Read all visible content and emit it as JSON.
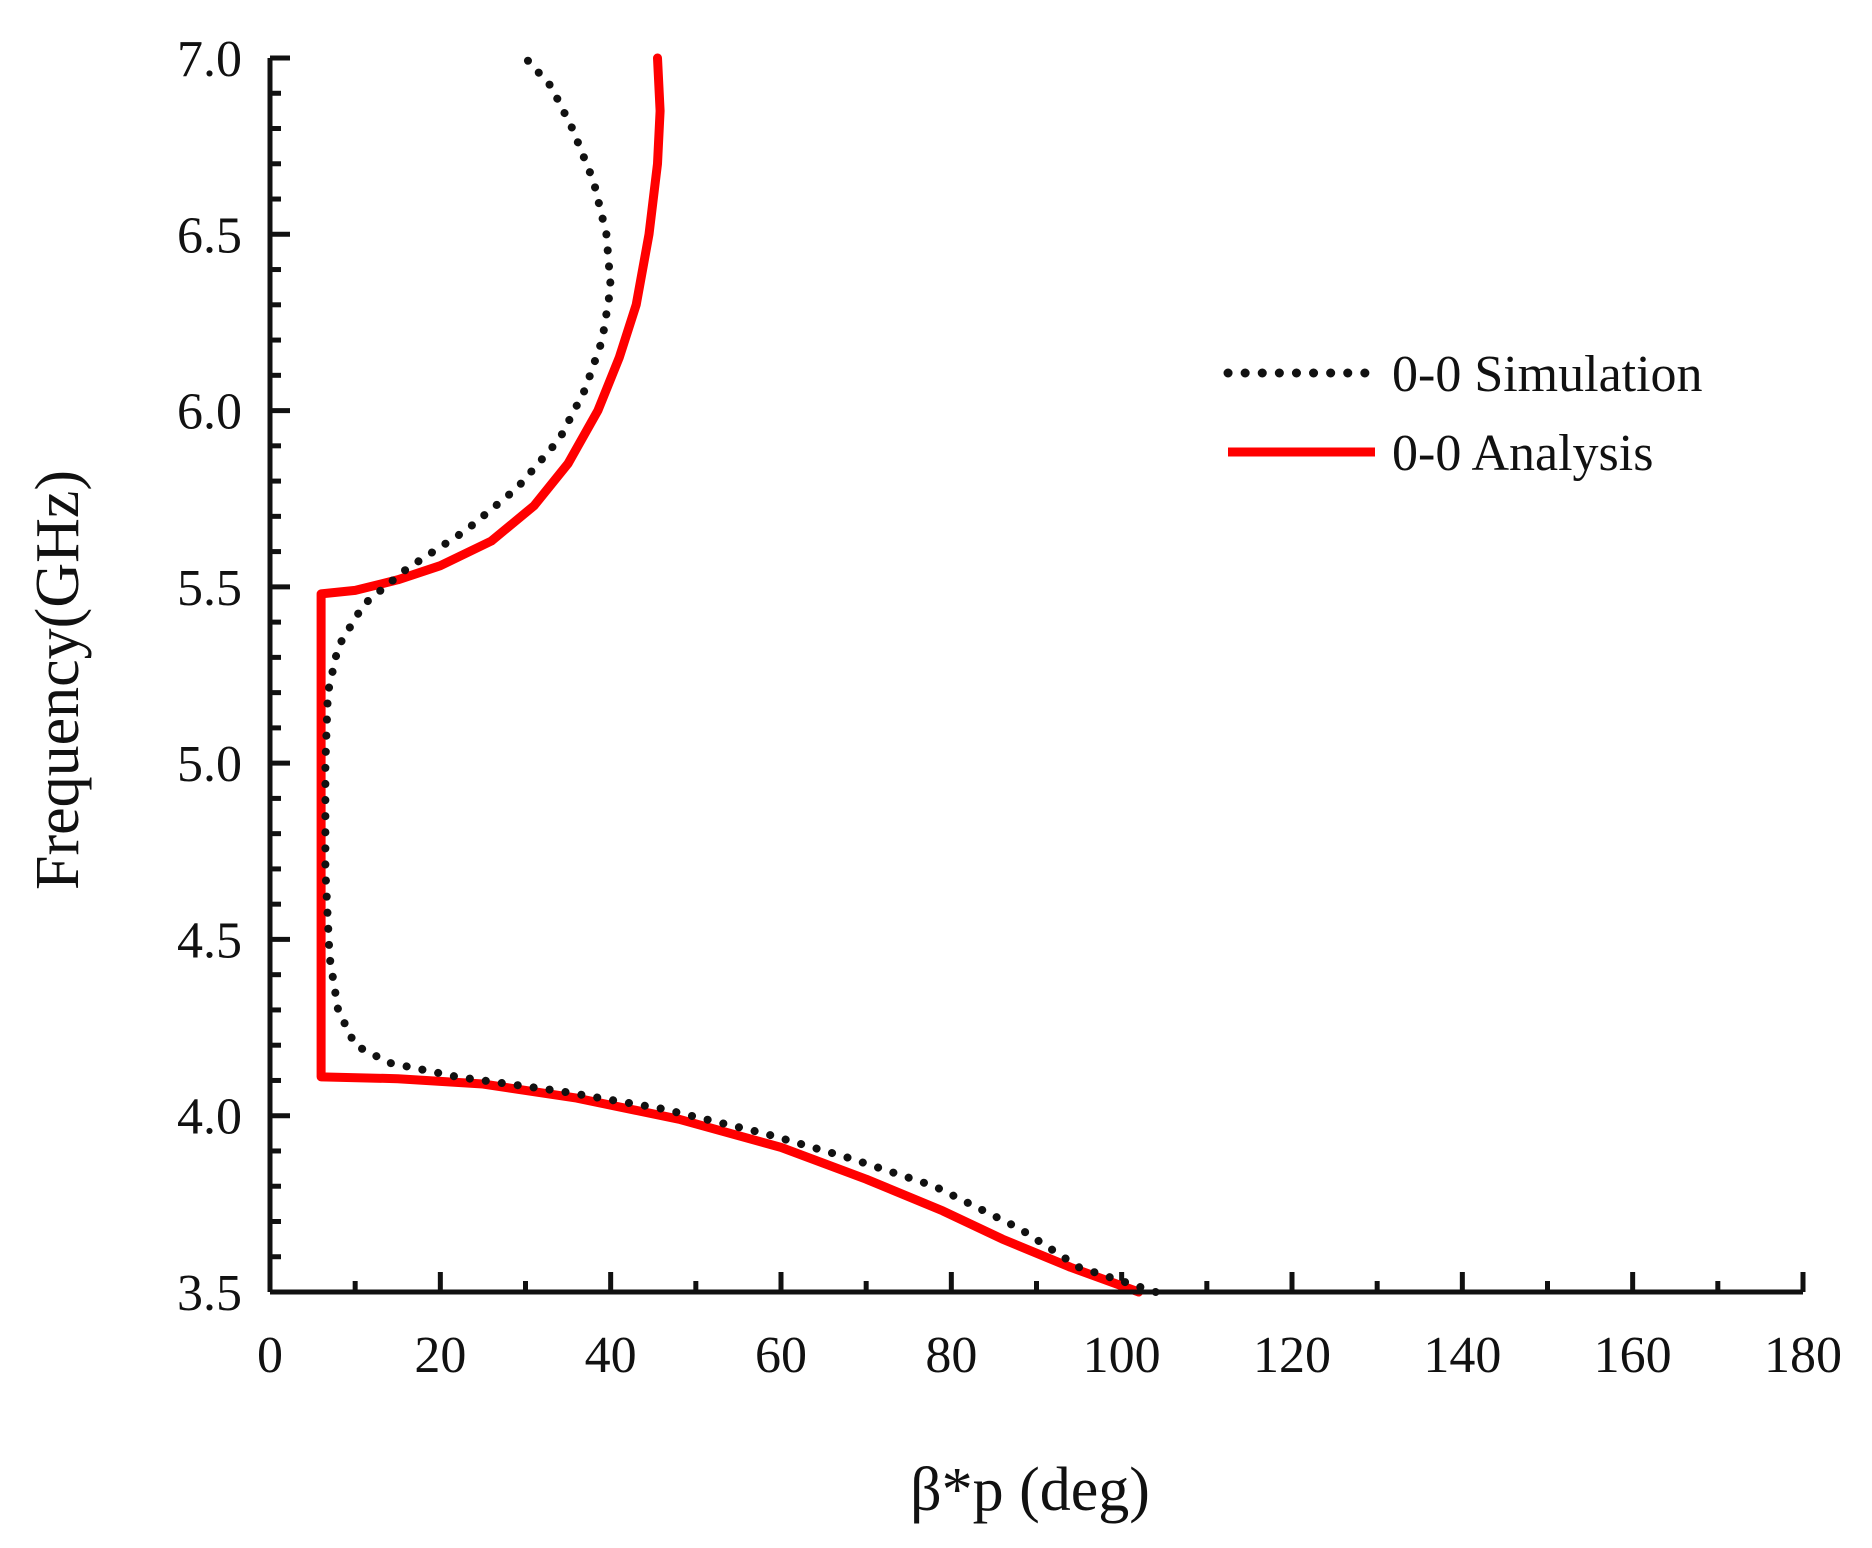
{
  "chart_data": {
    "type": "line",
    "title": "",
    "xlabel": "β*p (deg)",
    "ylabel": "Frequency(GHz)",
    "xlim": [
      0,
      180
    ],
    "ylim": [
      3.5,
      7.0
    ],
    "x_ticks": [
      0,
      20,
      40,
      60,
      80,
      100,
      120,
      140,
      160,
      180
    ],
    "x_tick_labels": [
      "0",
      "20",
      "40",
      "60",
      "80",
      "100",
      "120",
      "140",
      "160",
      "180"
    ],
    "y_ticks": [
      3.5,
      4.0,
      4.5,
      5.0,
      5.5,
      6.0,
      6.5,
      7.0
    ],
    "y_tick_labels": [
      "3.5",
      "4.0",
      "4.5",
      "5.0",
      "5.5",
      "6.0",
      "6.5",
      "7.0"
    ],
    "grid": false,
    "legend_position": "top-right",
    "series": [
      {
        "name": "0-0 Simulation",
        "style": "dotted",
        "color": "#111111",
        "points": [
          [
            104,
            3.5
          ],
          [
            95,
            3.57
          ],
          [
            88,
            3.68
          ],
          [
            78,
            3.8
          ],
          [
            68,
            3.88
          ],
          [
            58,
            3.95
          ],
          [
            46,
            4.02
          ],
          [
            34,
            4.07
          ],
          [
            22,
            4.11
          ],
          [
            14,
            4.15
          ],
          [
            10,
            4.2
          ],
          [
            8,
            4.3
          ],
          [
            7,
            4.45
          ],
          [
            6.5,
            4.7
          ],
          [
            6.5,
            5.0
          ],
          [
            6.8,
            5.2
          ],
          [
            8,
            5.33
          ],
          [
            11,
            5.45
          ],
          [
            16,
            5.55
          ],
          [
            23,
            5.66
          ],
          [
            29,
            5.78
          ],
          [
            34,
            5.92
          ],
          [
            37,
            6.06
          ],
          [
            39,
            6.2
          ],
          [
            40,
            6.35
          ],
          [
            39.5,
            6.5
          ],
          [
            38,
            6.65
          ],
          [
            35.5,
            6.8
          ],
          [
            33,
            6.92
          ],
          [
            30,
            7.0
          ]
        ]
      },
      {
        "name": "0-0 Analysis",
        "style": "solid",
        "color": "#ff0000",
        "points": [
          [
            102,
            3.5
          ],
          [
            94,
            3.57
          ],
          [
            86,
            3.65
          ],
          [
            79,
            3.73
          ],
          [
            70,
            3.82
          ],
          [
            60,
            3.91
          ],
          [
            48,
            3.99
          ],
          [
            36,
            4.05
          ],
          [
            25,
            4.09
          ],
          [
            15,
            4.105
          ],
          [
            6,
            4.11
          ],
          [
            6,
            5.48
          ],
          [
            10,
            5.49
          ],
          [
            15,
            5.52
          ],
          [
            20,
            5.56
          ],
          [
            26,
            5.63
          ],
          [
            31,
            5.73
          ],
          [
            35,
            5.85
          ],
          [
            38.5,
            6.0
          ],
          [
            41,
            6.15
          ],
          [
            43,
            6.3
          ],
          [
            44.5,
            6.5
          ],
          [
            45.5,
            6.7
          ],
          [
            45.8,
            6.85
          ],
          [
            45.5,
            7.0
          ]
        ]
      }
    ]
  }
}
